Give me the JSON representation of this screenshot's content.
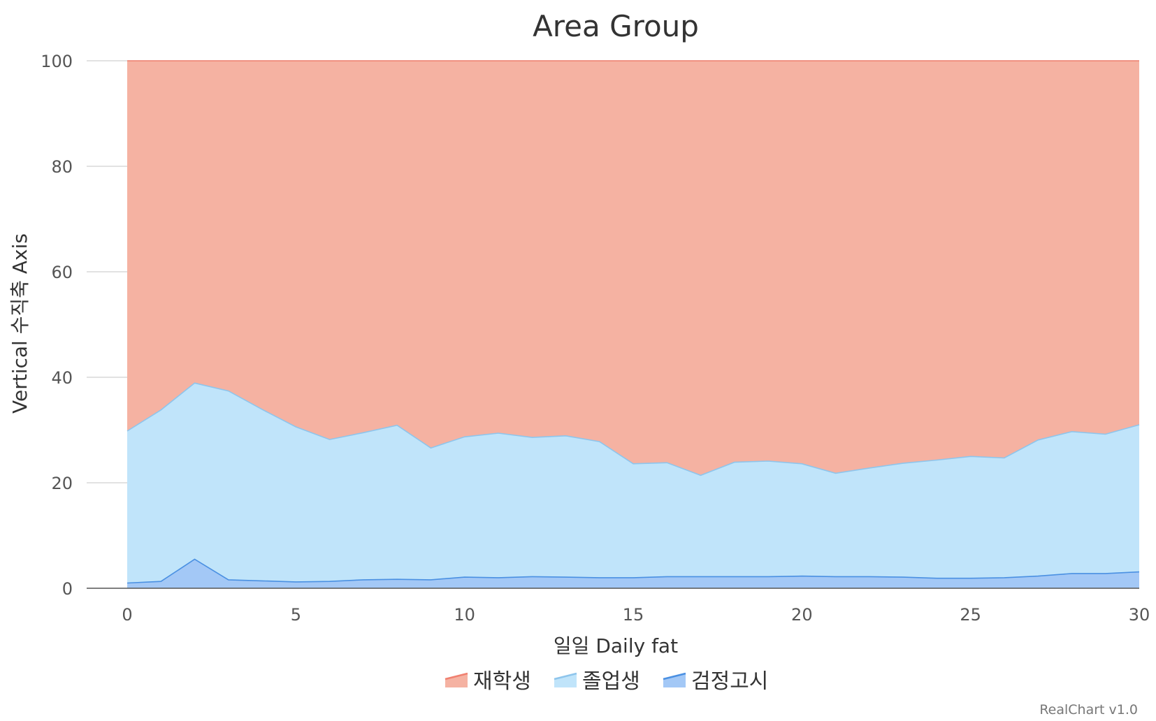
{
  "chart_data": {
    "type": "area",
    "stacking": "percent",
    "title": "Area Group",
    "xlabel": "일일 Daily fat",
    "ylabel": "Vertical 수직축 Axis",
    "ylim": [
      0,
      100
    ],
    "xlim": [
      0,
      30
    ],
    "x_ticks": [
      0,
      5,
      10,
      15,
      20,
      25,
      30
    ],
    "y_ticks": [
      0,
      20,
      40,
      60,
      80,
      100
    ],
    "grid": true,
    "legend_position": "bottom-center",
    "x": [
      0,
      1,
      2,
      3,
      4,
      5,
      6,
      7,
      8,
      9,
      10,
      11,
      12,
      13,
      14,
      15,
      16,
      17,
      18,
      19,
      20,
      21,
      22,
      23,
      24,
      25,
      26,
      27,
      28,
      29,
      30
    ],
    "series": [
      {
        "name": "재학생",
        "color": "#f08070",
        "fill": "#f5b2a2",
        "top": [
          100,
          100,
          100,
          100,
          100,
          100,
          100,
          100,
          100,
          100,
          100,
          100,
          100,
          100,
          100,
          100,
          100,
          100,
          100,
          100,
          100,
          100,
          100,
          100,
          100,
          100,
          100,
          100,
          100,
          100,
          100
        ]
      },
      {
        "name": "졸업생",
        "color": "#8ec5ec",
        "fill": "#c0e4fa",
        "top": [
          29.8,
          33.8,
          38.9,
          37.4,
          33.9,
          30.6,
          28.2,
          29.5,
          30.9,
          26.6,
          28.7,
          29.4,
          28.6,
          28.9,
          27.8,
          23.6,
          23.8,
          21.4,
          23.9,
          24.1,
          23.6,
          21.8,
          22.8,
          23.7,
          24.3,
          25.0,
          24.7,
          28.1,
          29.7,
          29.2,
          31.0
        ]
      },
      {
        "name": "검정고시",
        "color": "#4a90e2",
        "fill": "#a3c8f6",
        "top": [
          1.0,
          1.3,
          5.5,
          1.6,
          1.4,
          1.2,
          1.3,
          1.6,
          1.7,
          1.6,
          2.1,
          2.0,
          2.2,
          2.1,
          2.0,
          2.0,
          2.2,
          2.2,
          2.2,
          2.2,
          2.3,
          2.2,
          2.2,
          2.1,
          1.9,
          1.9,
          2.0,
          2.3,
          2.8,
          2.8,
          3.1
        ]
      }
    ]
  },
  "credit": "RealChart v1.0"
}
